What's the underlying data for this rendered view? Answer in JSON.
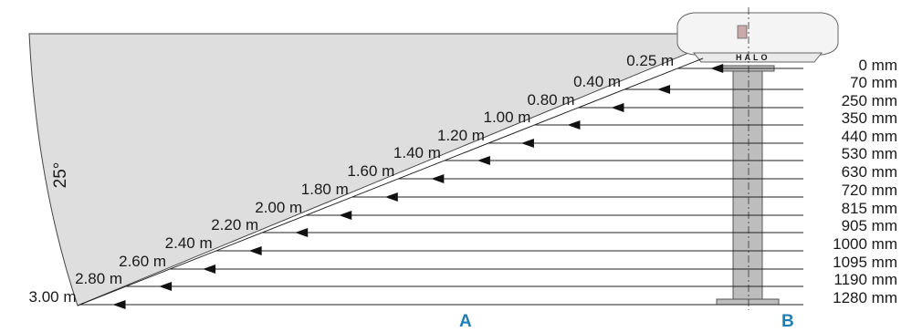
{
  "diagram": {
    "angle_label": "25°",
    "axis_a_label": "A",
    "axis_b_label": "B",
    "logo_text": "HALO",
    "accent_color": "#1f7fb4",
    "beam_fill": "#dedede",
    "rows": [
      {
        "distance": "0.25 m",
        "height": "0 mm"
      },
      {
        "distance": "0.40 m",
        "height": "70 mm"
      },
      {
        "distance": "0.80 m",
        "height": "250 mm"
      },
      {
        "distance": "1.00 m",
        "height": "350 mm"
      },
      {
        "distance": "1.20 m",
        "height": "440 mm"
      },
      {
        "distance": "1.40 m",
        "height": "530 mm"
      },
      {
        "distance": "1.60 m",
        "height": "630 mm"
      },
      {
        "distance": "1.80 m",
        "height": "720 mm"
      },
      {
        "distance": "2.00 m",
        "height": "815 mm"
      },
      {
        "distance": "2.20 m",
        "height": "905 mm"
      },
      {
        "distance": "2.40 m",
        "height": "1000 mm"
      },
      {
        "distance": "2.60 m",
        "height": "1095 mm"
      },
      {
        "distance": "2.80 m",
        "height": "1190 mm"
      },
      {
        "distance": "3.00 m",
        "height": "1280 mm"
      }
    ]
  }
}
